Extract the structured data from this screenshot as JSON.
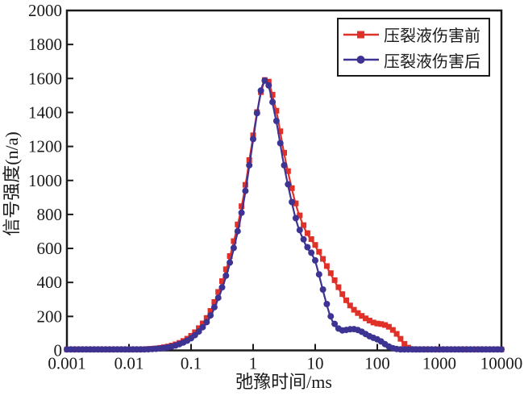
{
  "chart_data": {
    "type": "line",
    "title": "",
    "xlabel": "弛豫时间/ms",
    "ylabel": "信号强度(n/a)",
    "x_scale": "log",
    "xlim": [
      0.001,
      10000
    ],
    "ylim": [
      0,
      2000
    ],
    "grid": false,
    "legend_position": "top-right",
    "x_ticks": [
      {
        "value": 0.001,
        "label": "0.001"
      },
      {
        "value": 0.01,
        "label": "0.01"
      },
      {
        "value": 0.1,
        "label": "0.1"
      },
      {
        "value": 1,
        "label": "1"
      },
      {
        "value": 10,
        "label": "10"
      },
      {
        "value": 100,
        "label": "100"
      },
      {
        "value": 1000,
        "label": "1000"
      },
      {
        "value": 10000,
        "label": "10000"
      }
    ],
    "y_ticks": [
      {
        "value": 0,
        "label": "0"
      },
      {
        "value": 200,
        "label": "200"
      },
      {
        "value": 400,
        "label": "400"
      },
      {
        "value": 600,
        "label": "600"
      },
      {
        "value": 800,
        "label": "800"
      },
      {
        "value": 1000,
        "label": "1000"
      },
      {
        "value": 1200,
        "label": "1200"
      },
      {
        "value": 1400,
        "label": "1400"
      },
      {
        "value": 1600,
        "label": "1600"
      },
      {
        "value": 1800,
        "label": "1800"
      },
      {
        "value": 2000,
        "label": "2000"
      }
    ],
    "series": [
      {
        "name": "压裂液伤害前",
        "color": "#e03128",
        "marker": "square",
        "points": [
          [
            0.001,
            0
          ],
          [
            0.005,
            0
          ],
          [
            0.01,
            0
          ],
          [
            0.015,
            0
          ],
          [
            0.02,
            2
          ],
          [
            0.03,
            8
          ],
          [
            0.05,
            24
          ],
          [
            0.07,
            44
          ],
          [
            0.1,
            80
          ],
          [
            0.15,
            148
          ],
          [
            0.2,
            218
          ],
          [
            0.3,
            378
          ],
          [
            0.4,
            520
          ],
          [
            0.5,
            655
          ],
          [
            0.7,
            905
          ],
          [
            1.0,
            1260
          ],
          [
            1.2,
            1430
          ],
          [
            1.4,
            1545
          ],
          [
            1.6,
            1590
          ],
          [
            1.8,
            1572
          ],
          [
            2.0,
            1515
          ],
          [
            2.5,
            1365
          ],
          [
            3.0,
            1200
          ],
          [
            4.0,
            985
          ],
          [
            5.0,
            845
          ],
          [
            7.0,
            705
          ],
          [
            10,
            615
          ],
          [
            13,
            540
          ],
          [
            17,
            462
          ],
          [
            22,
            388
          ],
          [
            30,
            302
          ],
          [
            40,
            242
          ],
          [
            55,
            200
          ],
          [
            70,
            176
          ],
          [
            90,
            156
          ],
          [
            120,
            148
          ],
          [
            150,
            136
          ],
          [
            200,
            96
          ],
          [
            250,
            52
          ],
          [
            300,
            16
          ],
          [
            350,
            4
          ],
          [
            400,
            0
          ],
          [
            600,
            0
          ],
          [
            1000,
            0
          ],
          [
            3000,
            0
          ],
          [
            10000,
            0
          ]
        ]
      },
      {
        "name": "压裂液伤害后",
        "color": "#3d3393",
        "marker": "circle",
        "points": [
          [
            0.001,
            0
          ],
          [
            0.005,
            0
          ],
          [
            0.01,
            0
          ],
          [
            0.015,
            0
          ],
          [
            0.02,
            1
          ],
          [
            0.03,
            5
          ],
          [
            0.05,
            18
          ],
          [
            0.07,
            36
          ],
          [
            0.1,
            66
          ],
          [
            0.15,
            126
          ],
          [
            0.2,
            192
          ],
          [
            0.3,
            342
          ],
          [
            0.4,
            482
          ],
          [
            0.5,
            615
          ],
          [
            0.7,
            868
          ],
          [
            1.0,
            1238
          ],
          [
            1.2,
            1428
          ],
          [
            1.4,
            1556
          ],
          [
            1.55,
            1582
          ],
          [
            1.8,
            1548
          ],
          [
            2.0,
            1475
          ],
          [
            2.5,
            1300
          ],
          [
            3.0,
            1128
          ],
          [
            4.0,
            905
          ],
          [
            5.0,
            758
          ],
          [
            7.0,
            622
          ],
          [
            10,
            524
          ],
          [
            12,
            418
          ],
          [
            15,
            282
          ],
          [
            18,
            190
          ],
          [
            22,
            136
          ],
          [
            27,
            112
          ],
          [
            33,
            116
          ],
          [
            40,
            120
          ],
          [
            50,
            113
          ],
          [
            60,
            98
          ],
          [
            75,
            78
          ],
          [
            90,
            66
          ],
          [
            110,
            52
          ],
          [
            130,
            34
          ],
          [
            160,
            14
          ],
          [
            200,
            3
          ],
          [
            250,
            0
          ],
          [
            600,
            0
          ],
          [
            1000,
            0
          ],
          [
            3000,
            0
          ],
          [
            10000,
            0
          ]
        ]
      }
    ]
  },
  "legend": {
    "items": [
      {
        "label": "压裂液伤害前",
        "color": "#e03128",
        "marker": "square-icon"
      },
      {
        "label": "压裂液伤害后",
        "color": "#3d3393",
        "marker": "circle-icon"
      }
    ]
  },
  "style": {
    "frame_color": "#1a1a1a",
    "background": "#ffffff"
  }
}
